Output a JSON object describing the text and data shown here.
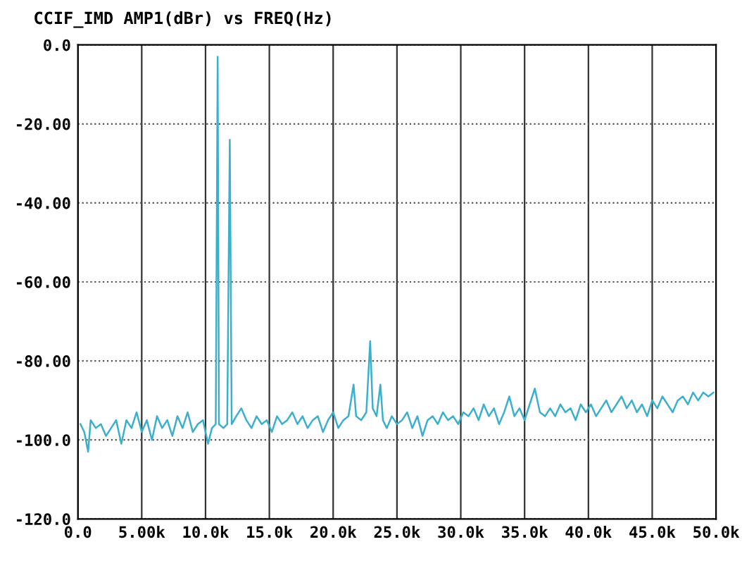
{
  "chart_data": {
    "type": "line",
    "title": "CCIF_IMD AMP1(dBr) vs FREQ(Hz)",
    "x": [
      200,
      500,
      800,
      1000,
      1400,
      1800,
      2200,
      2600,
      3000,
      3400,
      3800,
      4200,
      4600,
      5000,
      5400,
      5800,
      6200,
      6600,
      7000,
      7400,
      7800,
      8200,
      8600,
      9000,
      9400,
      9800,
      10200,
      10500,
      10800,
      10950,
      11050,
      11400,
      11700,
      11900,
      12050,
      12400,
      12800,
      13200,
      13600,
      14000,
      14400,
      14800,
      15200,
      15600,
      16000,
      16400,
      16800,
      17200,
      17600,
      18000,
      18400,
      18800,
      19200,
      19600,
      20000,
      20400,
      20800,
      21200,
      21600,
      21800,
      22200,
      22600,
      22900,
      23100,
      23400,
      23700,
      23900,
      24200,
      24600,
      25000,
      25400,
      25800,
      26200,
      26600,
      27000,
      27400,
      27800,
      28200,
      28600,
      29000,
      29400,
      29800,
      30200,
      30600,
      31000,
      31400,
      31800,
      32200,
      32600,
      33000,
      33400,
      33800,
      34200,
      34600,
      35000,
      35400,
      35800,
      36200,
      36600,
      37000,
      37400,
      37800,
      38200,
      38600,
      39000,
      39400,
      39800,
      40200,
      40600,
      41000,
      41400,
      41800,
      42200,
      42600,
      43000,
      43400,
      43800,
      44200,
      44600,
      45000,
      45400,
      45800,
      46200,
      46600,
      47000,
      47400,
      47800,
      48200,
      48600,
      49000,
      49400,
      49800
    ],
    "series": [
      {
        "color": "#3ab0cc",
        "values": [
          -96,
          -98,
          -103,
          -95,
          -97,
          -96,
          -99,
          -97,
          -95,
          -101,
          -95,
          -97,
          -93,
          -98,
          -95,
          -100,
          -94,
          -97,
          -95,
          -99,
          -94,
          -97,
          -93,
          -98,
          -96,
          -95,
          -101,
          -97,
          -96,
          -3,
          -96,
          -97,
          -96,
          -24,
          -96,
          -94,
          -92,
          -95,
          -97,
          -94,
          -96,
          -95,
          -98,
          -94,
          -96,
          -95,
          -93,
          -96,
          -94,
          -97,
          -95,
          -94,
          -98,
          -95,
          -93,
          -97,
          -95,
          -94,
          -86,
          -94,
          -95,
          -93,
          -75,
          -92,
          -94,
          -86,
          -95,
          -97,
          -94,
          -96,
          -95,
          -93,
          -97,
          -94,
          -99,
          -95,
          -94,
          -96,
          -93,
          -95,
          -94,
          -96,
          -93,
          -94,
          -92,
          -95,
          -91,
          -94,
          -92,
          -96,
          -93,
          -89,
          -94,
          -92,
          -95,
          -91,
          -87,
          -93,
          -94,
          -92,
          -94,
          -91,
          -93,
          -92,
          -95,
          -91,
          -93,
          -91,
          -94,
          -92,
          -90,
          -93,
          -91,
          -89,
          -92,
          -90,
          -93,
          -91,
          -94,
          -90,
          -92,
          -89,
          -91,
          -93,
          -90,
          -89,
          -91,
          -88,
          -90,
          -88,
          -89,
          -88
        ]
      }
    ],
    "xlim": [
      0,
      50000
    ],
    "ylim": [
      -120,
      0
    ],
    "xticks": [
      {
        "value": 0,
        "label": "0.0"
      },
      {
        "value": 5000,
        "label": "5.00k"
      },
      {
        "value": 10000,
        "label": "10.0k"
      },
      {
        "value": 15000,
        "label": "15.0k"
      },
      {
        "value": 20000,
        "label": "20.0k"
      },
      {
        "value": 25000,
        "label": "25.0k"
      },
      {
        "value": 30000,
        "label": "30.0k"
      },
      {
        "value": 35000,
        "label": "35.0k"
      },
      {
        "value": 40000,
        "label": "40.0k"
      },
      {
        "value": 45000,
        "label": "45.0k"
      },
      {
        "value": 50000,
        "label": "50.0k"
      }
    ],
    "yticks": [
      {
        "value": 0,
        "label": "0.0"
      },
      {
        "value": -20,
        "label": "-20.00"
      },
      {
        "value": -40,
        "label": "-40.00"
      },
      {
        "value": -60,
        "label": "-60.00"
      },
      {
        "value": -80,
        "label": "-80.00"
      },
      {
        "value": -100,
        "label": "-100.0"
      },
      {
        "value": -120,
        "label": "-120.0"
      }
    ],
    "grid": true,
    "line_style": "solid",
    "marker": "none"
  }
}
